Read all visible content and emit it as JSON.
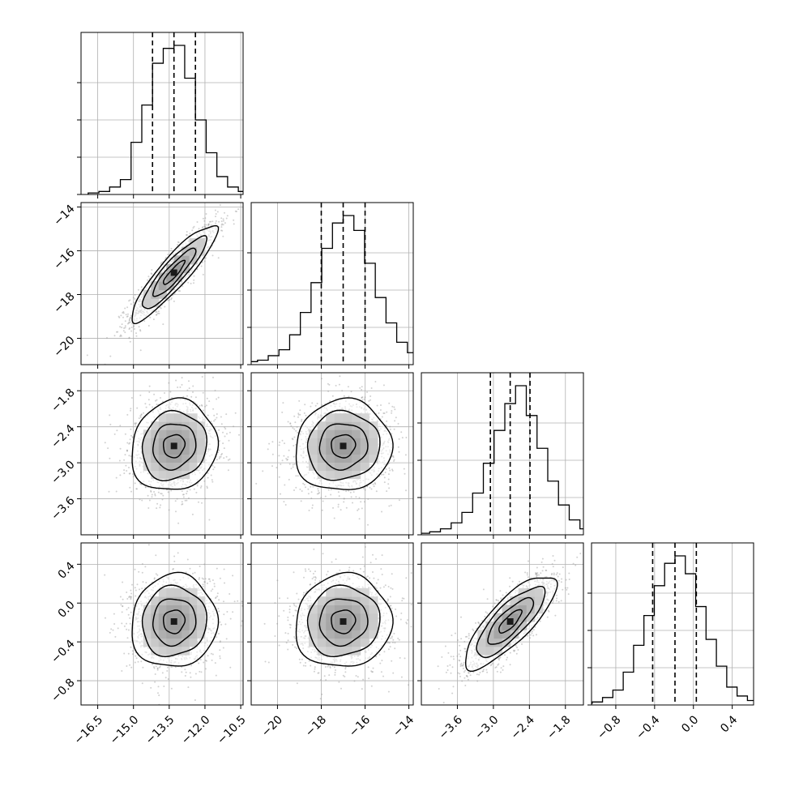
{
  "figure": {
    "type": "corner-plot",
    "colors": {
      "hist": "#000000",
      "scatter": "#9a9a9a",
      "contour": "#000000",
      "grid": "#b0b0b0",
      "density_dark": "#1a1a1a"
    }
  },
  "chart_data": {
    "type": "corner",
    "parameters": [
      {
        "index": 0,
        "range": [
          -17.2,
          -10.4
        ],
        "ticks": [
          -16.5,
          -15.0,
          -13.5,
          -12.0,
          -10.5
        ],
        "tick_labels": [
          "−16.5",
          "−15.0",
          "−13.5",
          "−12.0",
          "−10.5"
        ],
        "mean": -13.3,
        "std": 0.9,
        "quantiles": [
          -14.2,
          -13.3,
          -12.4
        ]
      },
      {
        "index": 1,
        "range": [
          -21.2,
          -13.8
        ],
        "ticks": [
          -20,
          -18,
          -16,
          -14
        ],
        "tick_labels": [
          "−20",
          "−18",
          "−16",
          "−14"
        ],
        "mean": -17.0,
        "std": 1.1,
        "quantiles": [
          -18.0,
          -17.0,
          -16.0
        ]
      },
      {
        "index": 2,
        "range": [
          -4.2,
          -1.5
        ],
        "ticks": [
          -3.6,
          -3.0,
          -2.4,
          -1.8
        ],
        "tick_labels": [
          "−3.6",
          "−3.0",
          "−2.4",
          "−1.8"
        ],
        "mean": -2.72,
        "std": 0.38,
        "quantiles": [
          -3.05,
          -2.72,
          -2.39
        ]
      },
      {
        "index": 3,
        "range": [
          -1.05,
          0.62
        ],
        "ticks": [
          -0.8,
          -0.4,
          0.0,
          0.4
        ],
        "tick_labels": [
          "−0.8",
          "−0.4",
          "0.0",
          "0.4"
        ],
        "mean": -0.19,
        "std": 0.24,
        "quantiles": [
          -0.42,
          -0.19,
          0.03
        ]
      }
    ],
    "correlations": [
      [
        1.0,
        0.9,
        0.1,
        0.05
      ],
      [
        0.9,
        1.0,
        0.05,
        0.05
      ],
      [
        0.1,
        0.05,
        1.0,
        0.8
      ],
      [
        0.05,
        0.05,
        0.8,
        1.0
      ]
    ],
    "histograms": [
      [
        0.01,
        0.02,
        0.05,
        0.1,
        0.35,
        0.6,
        0.88,
        0.98,
        1.0,
        0.78,
        0.5,
        0.28,
        0.12,
        0.05,
        0.02,
        0.01
      ],
      [
        0.02,
        0.03,
        0.06,
        0.1,
        0.2,
        0.35,
        0.55,
        0.78,
        0.95,
        1.0,
        0.9,
        0.68,
        0.45,
        0.28,
        0.15,
        0.08,
        0.04,
        0.02
      ],
      [
        0.01,
        0.02,
        0.04,
        0.08,
        0.15,
        0.28,
        0.48,
        0.7,
        0.88,
        1.0,
        0.8,
        0.58,
        0.36,
        0.2,
        0.1,
        0.04,
        0.02
      ],
      [
        0.01,
        0.02,
        0.05,
        0.1,
        0.22,
        0.4,
        0.6,
        0.8,
        0.95,
        1.0,
        0.88,
        0.66,
        0.44,
        0.26,
        0.12,
        0.06,
        0.03,
        0.01
      ]
    ],
    "contour_levels_sigma": [
      0.5,
      1.0,
      1.5,
      2.0
    ],
    "quantile_fractions": [
      0.16,
      0.5,
      0.84
    ],
    "grid": true
  }
}
